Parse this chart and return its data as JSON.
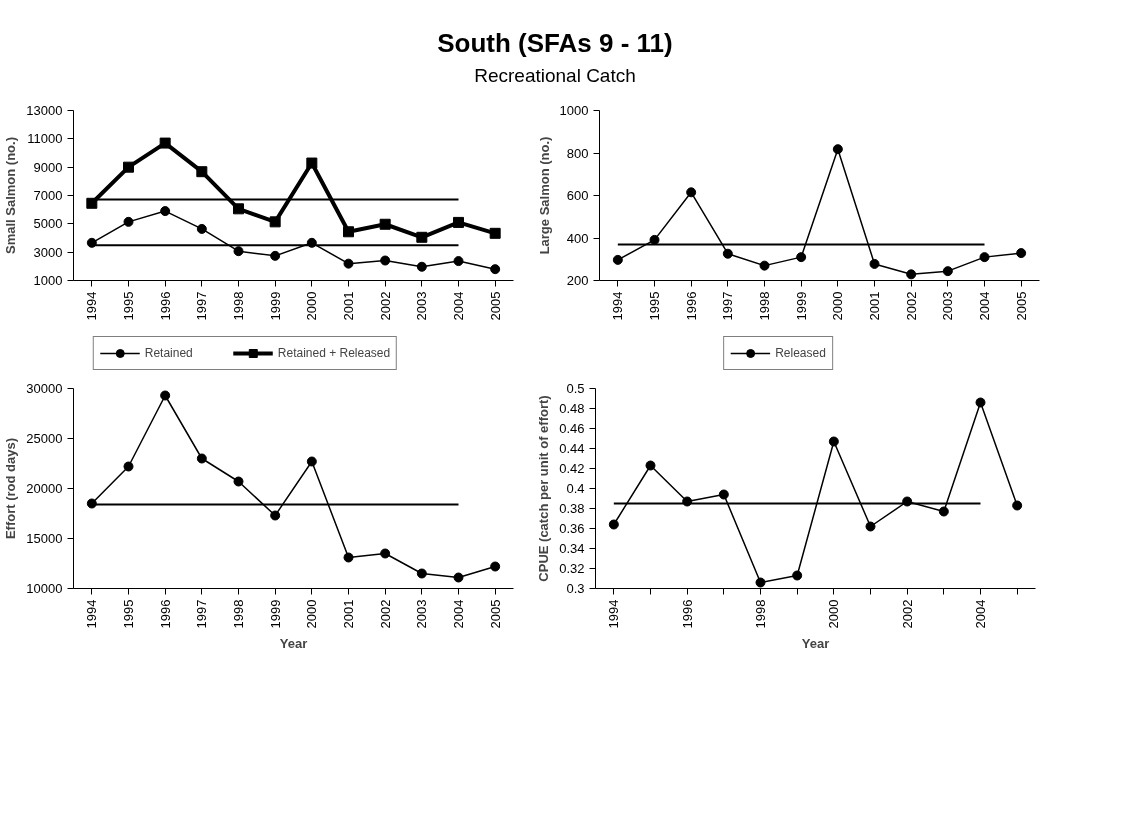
{
  "chart_data": [
    {
      "type": "line",
      "title": "South (SFAs 9 - 11)",
      "subtitle": "Recreational Catch",
      "ylabel": "Small Salmon (no.)",
      "categories": [
        "1994",
        "1995",
        "1996",
        "1997",
        "1998",
        "1999",
        "2000",
        "2001",
        "2002",
        "2003",
        "2004",
        "2005"
      ],
      "ylim": [
        1000,
        13000
      ],
      "yticks": [
        1000,
        3000,
        5000,
        7000,
        9000,
        11000,
        13000
      ],
      "grid": false,
      "legend": "bottom",
      "series": [
        {
          "name": "Retained",
          "color": "#000000",
          "marker": "circle",
          "values": [
            3660,
            5140,
            5900,
            4640,
            3070,
            2740,
            3660,
            2190,
            2410,
            1970,
            2370,
            1800
          ]
        },
        {
          "name": "Retained + Released",
          "color": "#000000",
          "marker": "square",
          "values": [
            6450,
            9000,
            10700,
            8680,
            6060,
            5140,
            9290,
            4440,
            4970,
            4050,
            5100,
            4330
          ]
        }
      ],
      "ref_lines": [
        {
          "axis": "y",
          "value": 3480,
          "color": "#000000"
        },
        {
          "axis": "y",
          "value": 6710,
          "color": "#000000"
        }
      ]
    },
    {
      "type": "line",
      "ylabel": "Large Salmon (no.)",
      "categories": [
        "1994",
        "1995",
        "1996",
        "1997",
        "1998",
        "1999",
        "2000",
        "2001",
        "2002",
        "2003",
        "2004",
        "2005"
      ],
      "ylim": [
        200,
        1000
      ],
      "yticks": [
        200,
        400,
        600,
        800,
        1000
      ],
      "grid": false,
      "legend": "bottom",
      "series": [
        {
          "name": "Released",
          "color": "#000000",
          "marker": "circle",
          "values": [
            297,
            391,
            615,
            326,
            270,
            310,
            818,
            278,
            229,
            244,
            310,
            329
          ]
        }
      ],
      "ref_lines": [
        {
          "axis": "y",
          "value": 370,
          "color": "#000000"
        }
      ]
    },
    {
      "type": "line",
      "xlabel": "Year",
      "ylabel": "Effort (rod days)",
      "categories": [
        "1994",
        "1995",
        "1996",
        "1997",
        "1998",
        "1999",
        "2000",
        "2001",
        "2002",
        "2003",
        "2004",
        "2005"
      ],
      "ylim": [
        10000,
        30000
      ],
      "yticks": [
        10000,
        15000,
        20000,
        25000,
        30000
      ],
      "grid": false,
      "series": [
        {
          "color": "#000000",
          "marker": "circle",
          "values": [
            18500,
            22200,
            29300,
            23000,
            20700,
            17300,
            22700,
            13100,
            13500,
            11500,
            11100,
            12200
          ]
        }
      ],
      "ref_lines": [
        {
          "axis": "y",
          "value": 18400,
          "color": "#000000"
        }
      ]
    },
    {
      "type": "line",
      "xlabel": "Year",
      "ylabel": "CPUE (catch per unit of effort)",
      "categories": [
        "1994",
        null,
        "1996",
        null,
        "1998",
        null,
        "2000",
        null,
        "2002",
        null,
        "2004",
        null
      ],
      "ylim": [
        0.3,
        0.5
      ],
      "yticks": [
        0.3,
        0.32,
        0.34,
        0.36,
        0.38,
        0.4,
        0.42,
        0.44,
        0.46,
        0.48,
        0.5
      ],
      "grid": false,
      "series": [
        {
          "color": "#000000",
          "marker": "circle",
          "values": [
            0.364,
            0.423,
            0.387,
            0.394,
            0.306,
            0.313,
            0.447,
            0.362,
            0.387,
            0.377,
            0.486,
            0.383
          ]
        }
      ],
      "ref_lines": [
        {
          "axis": "y",
          "value": 0.385,
          "color": "#000000"
        }
      ]
    }
  ]
}
